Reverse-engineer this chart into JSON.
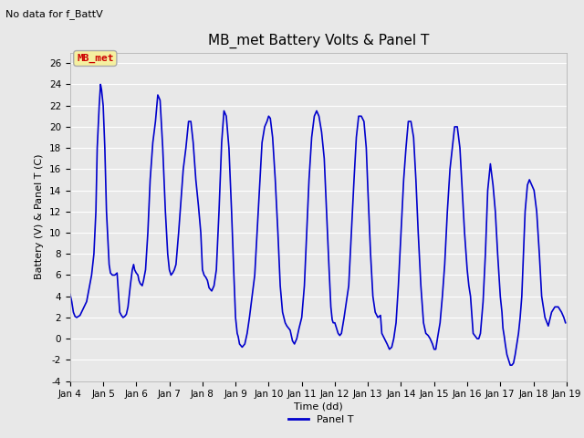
{
  "title": "MB_met Battery Volts & Panel T",
  "top_left_text": "No data for f_BattV",
  "ylabel": "Battery (V) & Panel T (C)",
  "xlabel": "Time (dd)",
  "ylim": [
    -4,
    27
  ],
  "yticks": [
    -4,
    -2,
    0,
    2,
    4,
    6,
    8,
    10,
    12,
    14,
    16,
    18,
    20,
    22,
    24,
    26
  ],
  "xlim_start": 4.0,
  "xlim_end": 19.0,
  "xtick_labels": [
    "Jan 4",
    "Jan 5",
    "Jan 6",
    "Jan 7",
    "Jan 8",
    "Jan 9",
    "Jan 10",
    "Jan 11",
    "Jan 12",
    "Jan 13",
    "Jan 14",
    "Jan 15",
    "Jan 16",
    "Jan 17",
    "Jan 18",
    "Jan 19"
  ],
  "xtick_positions": [
    4,
    5,
    6,
    7,
    8,
    9,
    10,
    11,
    12,
    13,
    14,
    15,
    16,
    17,
    18,
    19
  ],
  "line_color": "#0000CC",
  "line_width": 1.2,
  "legend_label": "Panel T",
  "legend_line_color": "#0000CC",
  "background_color": "#E8E8E8",
  "plot_bg_color": "#E8E8E8",
  "grid_color": "#FFFFFF",
  "mb_met_box_facecolor": "#F5F0A0",
  "mb_met_box_edgecolor": "#AAAAAA",
  "mb_met_text_color": "#CC0000",
  "title_fontsize": 11,
  "label_fontsize": 8,
  "tick_fontsize": 7.5,
  "top_left_fontsize": 8,
  "legend_fontsize": 8,
  "mb_met_fontsize": 8,
  "panel_t_data": [
    [
      4.0,
      4.2
    ],
    [
      4.05,
      3.5
    ],
    [
      4.1,
      2.5
    ],
    [
      4.15,
      2.1
    ],
    [
      4.2,
      2.0
    ],
    [
      4.3,
      2.2
    ],
    [
      4.5,
      3.5
    ],
    [
      4.65,
      6.0
    ],
    [
      4.72,
      8.0
    ],
    [
      4.78,
      12.0
    ],
    [
      4.82,
      18.0
    ],
    [
      4.88,
      22.0
    ],
    [
      4.92,
      24.0
    ],
    [
      4.95,
      23.5
    ],
    [
      5.0,
      22.0
    ],
    [
      5.05,
      18.0
    ],
    [
      5.1,
      12.0
    ],
    [
      5.18,
      7.0
    ],
    [
      5.22,
      6.2
    ],
    [
      5.28,
      6.0
    ],
    [
      5.35,
      6.0
    ],
    [
      5.42,
      6.2
    ],
    [
      5.5,
      2.5
    ],
    [
      5.55,
      2.2
    ],
    [
      5.6,
      2.0
    ],
    [
      5.65,
      2.1
    ],
    [
      5.7,
      2.3
    ],
    [
      5.75,
      3.0
    ],
    [
      5.82,
      5.0
    ],
    [
      5.88,
      6.5
    ],
    [
      5.92,
      7.0
    ],
    [
      5.95,
      6.5
    ],
    [
      6.0,
      6.2
    ],
    [
      6.05,
      6.0
    ],
    [
      6.08,
      5.5
    ],
    [
      6.12,
      5.2
    ],
    [
      6.18,
      5.0
    ],
    [
      6.22,
      5.5
    ],
    [
      6.28,
      6.5
    ],
    [
      6.35,
      10.0
    ],
    [
      6.42,
      15.0
    ],
    [
      6.5,
      18.5
    ],
    [
      6.58,
      20.5
    ],
    [
      6.65,
      23.0
    ],
    [
      6.72,
      22.5
    ],
    [
      6.8,
      18.0
    ],
    [
      6.88,
      12.0
    ],
    [
      6.95,
      8.0
    ],
    [
      7.0,
      6.5
    ],
    [
      7.05,
      6.0
    ],
    [
      7.1,
      6.2
    ],
    [
      7.15,
      6.5
    ],
    [
      7.2,
      7.0
    ],
    [
      7.28,
      10.0
    ],
    [
      7.35,
      13.0
    ],
    [
      7.42,
      16.0
    ],
    [
      7.5,
      18.0
    ],
    [
      7.58,
      20.5
    ],
    [
      7.65,
      20.5
    ],
    [
      7.72,
      18.5
    ],
    [
      7.8,
      15.0
    ],
    [
      7.88,
      12.5
    ],
    [
      7.95,
      10.0
    ],
    [
      8.0,
      6.5
    ],
    [
      8.05,
      6.0
    ],
    [
      8.1,
      5.8
    ],
    [
      8.15,
      5.5
    ],
    [
      8.2,
      4.8
    ],
    [
      8.28,
      4.5
    ],
    [
      8.35,
      5.0
    ],
    [
      8.42,
      6.5
    ],
    [
      8.5,
      12.0
    ],
    [
      8.58,
      18.5
    ],
    [
      8.65,
      21.5
    ],
    [
      8.72,
      21.0
    ],
    [
      8.8,
      18.0
    ],
    [
      8.88,
      12.0
    ],
    [
      8.95,
      6.0
    ],
    [
      9.0,
      2.0
    ],
    [
      9.05,
      0.5
    ],
    [
      9.08,
      0.2
    ],
    [
      9.12,
      -0.5
    ],
    [
      9.2,
      -0.8
    ],
    [
      9.28,
      -0.5
    ],
    [
      9.35,
      0.5
    ],
    [
      9.42,
      2.0
    ],
    [
      9.5,
      4.0
    ],
    [
      9.58,
      6.0
    ],
    [
      9.65,
      10.0
    ],
    [
      9.72,
      14.0
    ],
    [
      9.8,
      18.5
    ],
    [
      9.88,
      20.0
    ],
    [
      9.95,
      20.5
    ],
    [
      10.0,
      21.0
    ],
    [
      10.05,
      20.8
    ],
    [
      10.12,
      19.0
    ],
    [
      10.2,
      15.0
    ],
    [
      10.28,
      10.0
    ],
    [
      10.35,
      5.0
    ],
    [
      10.42,
      2.5
    ],
    [
      10.5,
      1.5
    ],
    [
      10.55,
      1.2
    ],
    [
      10.6,
      1.0
    ],
    [
      10.65,
      0.8
    ],
    [
      10.72,
      -0.2
    ],
    [
      10.78,
      -0.5
    ],
    [
      10.85,
      0.0
    ],
    [
      10.92,
      1.0
    ],
    [
      11.0,
      2.0
    ],
    [
      11.08,
      5.0
    ],
    [
      11.15,
      10.0
    ],
    [
      11.22,
      15.0
    ],
    [
      11.3,
      19.0
    ],
    [
      11.38,
      21.0
    ],
    [
      11.45,
      21.5
    ],
    [
      11.52,
      21.0
    ],
    [
      11.6,
      19.5
    ],
    [
      11.68,
      17.0
    ],
    [
      11.75,
      12.0
    ],
    [
      11.82,
      7.0
    ],
    [
      11.88,
      3.0
    ],
    [
      11.92,
      1.8
    ],
    [
      11.95,
      1.5
    ],
    [
      12.0,
      1.5
    ],
    [
      12.05,
      1.0
    ],
    [
      12.1,
      0.5
    ],
    [
      12.15,
      0.3
    ],
    [
      12.2,
      0.5
    ],
    [
      12.28,
      2.0
    ],
    [
      12.35,
      3.5
    ],
    [
      12.42,
      5.0
    ],
    [
      12.5,
      10.0
    ],
    [
      12.58,
      15.0
    ],
    [
      12.65,
      19.0
    ],
    [
      12.72,
      21.0
    ],
    [
      12.8,
      21.0
    ],
    [
      12.88,
      20.5
    ],
    [
      12.95,
      18.0
    ],
    [
      13.0,
      14.0
    ],
    [
      13.08,
      8.0
    ],
    [
      13.15,
      4.0
    ],
    [
      13.22,
      2.5
    ],
    [
      13.3,
      2.0
    ],
    [
      13.38,
      2.2
    ],
    [
      13.42,
      0.5
    ],
    [
      13.5,
      0.0
    ],
    [
      13.58,
      -0.5
    ],
    [
      13.65,
      -1.0
    ],
    [
      13.72,
      -0.8
    ],
    [
      13.78,
      0.0
    ],
    [
      13.85,
      1.5
    ],
    [
      13.92,
      5.0
    ],
    [
      14.0,
      10.0
    ],
    [
      14.08,
      15.0
    ],
    [
      14.15,
      18.0
    ],
    [
      14.22,
      20.5
    ],
    [
      14.3,
      20.5
    ],
    [
      14.38,
      19.0
    ],
    [
      14.45,
      15.0
    ],
    [
      14.52,
      10.0
    ],
    [
      14.6,
      5.0
    ],
    [
      14.68,
      1.5
    ],
    [
      14.75,
      0.5
    ],
    [
      14.82,
      0.3
    ],
    [
      14.88,
      0.0
    ],
    [
      14.95,
      -0.5
    ],
    [
      15.0,
      -1.0
    ],
    [
      15.05,
      -1.0
    ],
    [
      15.1,
      0.0
    ],
    [
      15.18,
      1.5
    ],
    [
      15.25,
      4.0
    ],
    [
      15.32,
      7.0
    ],
    [
      15.4,
      12.0
    ],
    [
      15.48,
      16.0
    ],
    [
      15.55,
      18.0
    ],
    [
      15.62,
      20.0
    ],
    [
      15.7,
      20.0
    ],
    [
      15.78,
      18.0
    ],
    [
      15.85,
      14.0
    ],
    [
      15.92,
      10.0
    ],
    [
      16.0,
      6.5
    ],
    [
      16.05,
      5.0
    ],
    [
      16.1,
      4.0
    ],
    [
      16.18,
      0.5
    ],
    [
      16.25,
      0.2
    ],
    [
      16.3,
      0.0
    ],
    [
      16.35,
      0.0
    ],
    [
      16.4,
      0.5
    ],
    [
      16.48,
      3.5
    ],
    [
      16.55,
      8.0
    ],
    [
      16.62,
      14.0
    ],
    [
      16.7,
      16.5
    ],
    [
      16.78,
      14.5
    ],
    [
      16.85,
      12.0
    ],
    [
      16.92,
      8.0
    ],
    [
      17.0,
      4.0
    ],
    [
      17.05,
      2.5
    ],
    [
      17.08,
      1.0
    ],
    [
      17.12,
      0.2
    ],
    [
      17.15,
      -0.5
    ],
    [
      17.2,
      -1.5
    ],
    [
      17.25,
      -2.0
    ],
    [
      17.3,
      -2.5
    ],
    [
      17.35,
      -2.5
    ],
    [
      17.4,
      -2.3
    ],
    [
      17.45,
      -1.5
    ],
    [
      17.5,
      -0.5
    ],
    [
      17.55,
      0.5
    ],
    [
      17.6,
      2.0
    ],
    [
      17.65,
      4.0
    ],
    [
      17.7,
      8.0
    ],
    [
      17.75,
      12.0
    ],
    [
      17.82,
      14.5
    ],
    [
      17.88,
      15.0
    ],
    [
      17.95,
      14.5
    ],
    [
      18.02,
      14.0
    ],
    [
      18.1,
      12.0
    ],
    [
      18.18,
      8.0
    ],
    [
      18.25,
      4.0
    ],
    [
      18.35,
      2.0
    ],
    [
      18.45,
      1.2
    ],
    [
      18.55,
      2.5
    ],
    [
      18.65,
      3.0
    ],
    [
      18.75,
      3.0
    ],
    [
      18.85,
      2.5
    ],
    [
      18.92,
      2.0
    ],
    [
      18.97,
      1.5
    ]
  ]
}
